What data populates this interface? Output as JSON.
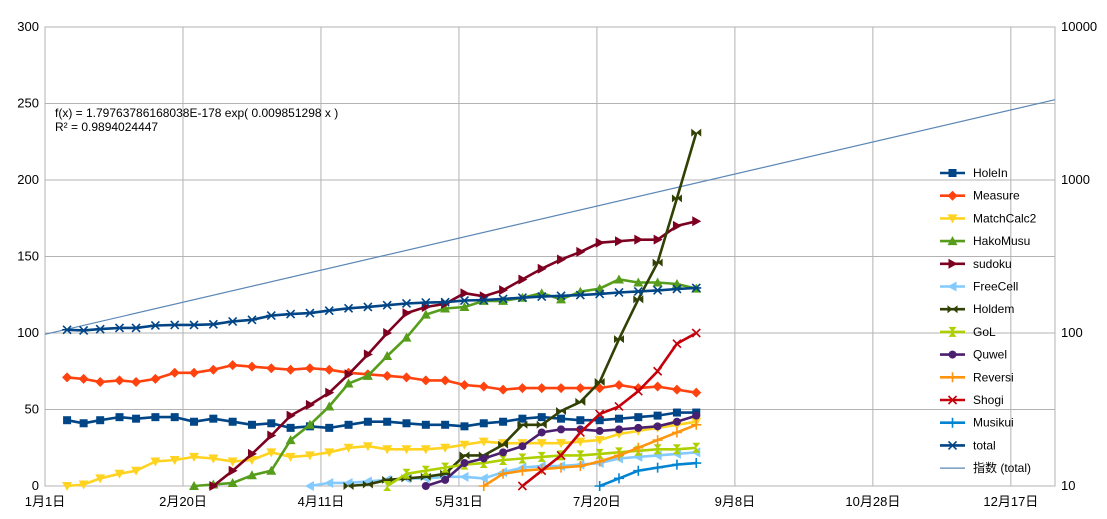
{
  "chart_data": {
    "type": "line",
    "x_axis": {
      "ticks": [
        "1月1日",
        "2月20日",
        "4月11日",
        "5月31日",
        "7月20日",
        "9月8日",
        "10月28日",
        "12月17日"
      ],
      "min_day": 1,
      "max_day": 367
    },
    "y_left": {
      "min": 0,
      "max": 300,
      "ticks": [
        "0",
        "50",
        "100",
        "150",
        "200",
        "250",
        "300"
      ]
    },
    "y_right": {
      "scale": "log",
      "min": 10,
      "max": 10000,
      "ticks": [
        "10",
        "100",
        "1000",
        "10000"
      ]
    },
    "grid": true,
    "legend_position": "right",
    "trendline": {
      "name": "指数 (total)",
      "equation": "f(x) = 1.79763786168038E-178 exp( 0.009851298 x )",
      "r2": "R² = 0.989402444​7",
      "start": [
        1,
        98
      ],
      "end": [
        367,
        3350
      ],
      "color": "#5b87b5"
    },
    "series": [
      {
        "name": "HoleIn",
        "color": "#004586",
        "marker": "square",
        "axis": "left",
        "points": [
          [
            9,
            43
          ],
          [
            15,
            41
          ],
          [
            21,
            43
          ],
          [
            28,
            45
          ],
          [
            34,
            44
          ],
          [
            41,
            45
          ],
          [
            48,
            45
          ],
          [
            55,
            42
          ],
          [
            62,
            44
          ],
          [
            69,
            42
          ],
          [
            76,
            40
          ],
          [
            83,
            41
          ],
          [
            90,
            38
          ],
          [
            97,
            39
          ],
          [
            104,
            38
          ],
          [
            111,
            40
          ],
          [
            118,
            42
          ],
          [
            125,
            42
          ],
          [
            132,
            41
          ],
          [
            139,
            40
          ],
          [
            146,
            40
          ],
          [
            153,
            39
          ],
          [
            160,
            41
          ],
          [
            167,
            42
          ],
          [
            174,
            44
          ],
          [
            181,
            45
          ],
          [
            188,
            44
          ],
          [
            195,
            43
          ],
          [
            202,
            43
          ],
          [
            209,
            44
          ],
          [
            216,
            45
          ],
          [
            223,
            46
          ],
          [
            230,
            48
          ],
          [
            237,
            48
          ]
        ]
      },
      {
        "name": "Measure",
        "color": "#ff420e",
        "marker": "diamond",
        "axis": "left",
        "points": [
          [
            9,
            71
          ],
          [
            15,
            70
          ],
          [
            21,
            68
          ],
          [
            28,
            69
          ],
          [
            34,
            68
          ],
          [
            41,
            70
          ],
          [
            48,
            74
          ],
          [
            55,
            74
          ],
          [
            62,
            76
          ],
          [
            69,
            79
          ],
          [
            76,
            78
          ],
          [
            83,
            77
          ],
          [
            90,
            76
          ],
          [
            97,
            77
          ],
          [
            104,
            76
          ],
          [
            111,
            74
          ],
          [
            118,
            73
          ],
          [
            125,
            72
          ],
          [
            132,
            71
          ],
          [
            139,
            69
          ],
          [
            146,
            69
          ],
          [
            153,
            66
          ],
          [
            160,
            65
          ],
          [
            167,
            63
          ],
          [
            174,
            64
          ],
          [
            181,
            64
          ],
          [
            188,
            64
          ],
          [
            195,
            64
          ],
          [
            202,
            64
          ],
          [
            209,
            66
          ],
          [
            216,
            64
          ],
          [
            223,
            65
          ],
          [
            230,
            63
          ],
          [
            237,
            61
          ]
        ]
      },
      {
        "name": "MatchCalc2",
        "color": "#ffd320",
        "marker": "triangle-down",
        "axis": "left",
        "points": [
          [
            9,
            0
          ],
          [
            15,
            1
          ],
          [
            21,
            5
          ],
          [
            28,
            8
          ],
          [
            34,
            10
          ],
          [
            41,
            16
          ],
          [
            48,
            17
          ],
          [
            55,
            19
          ],
          [
            62,
            18
          ],
          [
            69,
            16
          ],
          [
            76,
            17
          ],
          [
            83,
            22
          ],
          [
            90,
            19
          ],
          [
            97,
            20
          ],
          [
            104,
            22
          ],
          [
            111,
            25
          ],
          [
            118,
            26
          ],
          [
            125,
            24
          ],
          [
            132,
            24
          ],
          [
            139,
            24
          ],
          [
            146,
            25
          ],
          [
            153,
            27
          ],
          [
            160,
            29
          ],
          [
            167,
            28
          ],
          [
            174,
            28
          ],
          [
            181,
            28
          ],
          [
            188,
            28
          ],
          [
            195,
            29
          ],
          [
            202,
            30
          ],
          [
            209,
            34
          ],
          [
            216,
            36
          ],
          [
            223,
            38
          ],
          [
            230,
            40
          ],
          [
            237,
            42
          ]
        ]
      },
      {
        "name": "HakoMusu",
        "color": "#579d1c",
        "marker": "triangle-up",
        "axis": "left",
        "points": [
          [
            55,
            0
          ],
          [
            62,
            1
          ],
          [
            69,
            2
          ],
          [
            76,
            7
          ],
          [
            83,
            10
          ],
          [
            90,
            30
          ],
          [
            97,
            40
          ],
          [
            104,
            52
          ],
          [
            111,
            67
          ],
          [
            118,
            72
          ],
          [
            125,
            85
          ],
          [
            132,
            97
          ],
          [
            139,
            112
          ],
          [
            146,
            116
          ],
          [
            153,
            117
          ],
          [
            160,
            121
          ],
          [
            167,
            121
          ],
          [
            174,
            123
          ],
          [
            181,
            126
          ],
          [
            188,
            122
          ],
          [
            195,
            127
          ],
          [
            202,
            129
          ],
          [
            209,
            135
          ],
          [
            216,
            133
          ],
          [
            223,
            133
          ],
          [
            230,
            132
          ],
          [
            237,
            129
          ]
        ]
      },
      {
        "name": "sudoku",
        "color": "#7e0021",
        "marker": "triangle-right",
        "axis": "left",
        "points": [
          [
            62,
            0
          ],
          [
            69,
            10
          ],
          [
            76,
            21
          ],
          [
            83,
            33
          ],
          [
            90,
            46
          ],
          [
            97,
            53
          ],
          [
            104,
            61
          ],
          [
            111,
            73
          ],
          [
            118,
            86
          ],
          [
            125,
            100
          ],
          [
            132,
            113
          ],
          [
            139,
            117
          ],
          [
            146,
            119
          ],
          [
            153,
            126
          ],
          [
            160,
            124
          ],
          [
            167,
            128
          ],
          [
            174,
            135
          ],
          [
            181,
            142
          ],
          [
            188,
            148
          ],
          [
            195,
            153
          ],
          [
            202,
            159
          ],
          [
            209,
            160
          ],
          [
            216,
            161
          ],
          [
            223,
            161
          ],
          [
            230,
            170
          ],
          [
            237,
            173
          ]
        ]
      },
      {
        "name": "FreeCell",
        "color": "#83caff",
        "marker": "triangle-left",
        "axis": "left",
        "points": [
          [
            97,
            0
          ],
          [
            104,
            2
          ],
          [
            111,
            2
          ],
          [
            118,
            3
          ],
          [
            125,
            4
          ],
          [
            132,
            5
          ],
          [
            139,
            5
          ],
          [
            146,
            6
          ],
          [
            153,
            6
          ],
          [
            160,
            5
          ],
          [
            167,
            9
          ],
          [
            174,
            12
          ],
          [
            181,
            13
          ],
          [
            188,
            13
          ],
          [
            195,
            14
          ],
          [
            202,
            15
          ],
          [
            209,
            18
          ],
          [
            216,
            19
          ],
          [
            223,
            20
          ],
          [
            230,
            21
          ],
          [
            237,
            22
          ]
        ]
      },
      {
        "name": "Holdem",
        "color": "#314004",
        "marker": "bowtie",
        "axis": "left",
        "points": [
          [
            111,
            0
          ],
          [
            118,
            1
          ],
          [
            125,
            4
          ],
          [
            132,
            5
          ],
          [
            139,
            6
          ],
          [
            146,
            8
          ],
          [
            153,
            20
          ],
          [
            160,
            20
          ],
          [
            167,
            27
          ],
          [
            174,
            40
          ],
          [
            181,
            40
          ],
          [
            188,
            49
          ],
          [
            195,
            55
          ],
          [
            202,
            68
          ],
          [
            209,
            96
          ],
          [
            216,
            122
          ],
          [
            223,
            146
          ],
          [
            230,
            188
          ],
          [
            237,
            231
          ]
        ]
      },
      {
        "name": "GoL",
        "color": "#aecf00",
        "marker": "hourglass",
        "axis": "left",
        "points": [
          [
            125,
            0
          ],
          [
            132,
            8
          ],
          [
            139,
            10
          ],
          [
            146,
            12
          ],
          [
            153,
            14
          ],
          [
            160,
            15
          ],
          [
            167,
            17
          ],
          [
            174,
            18
          ],
          [
            181,
            19
          ],
          [
            188,
            20
          ],
          [
            195,
            20
          ],
          [
            202,
            21
          ],
          [
            209,
            22
          ],
          [
            216,
            23
          ],
          [
            223,
            24
          ],
          [
            230,
            24
          ],
          [
            237,
            25
          ]
        ]
      },
      {
        "name": "Quwel",
        "color": "#4b1f6f",
        "marker": "circle",
        "axis": "left",
        "points": [
          [
            139,
            0
          ],
          [
            146,
            4
          ],
          [
            153,
            15
          ],
          [
            160,
            18
          ],
          [
            167,
            22
          ],
          [
            174,
            26
          ],
          [
            181,
            35
          ],
          [
            188,
            37
          ],
          [
            195,
            37
          ],
          [
            202,
            36
          ],
          [
            209,
            37
          ],
          [
            216,
            38
          ],
          [
            223,
            39
          ],
          [
            230,
            42
          ],
          [
            237,
            46
          ]
        ]
      },
      {
        "name": "Reversi",
        "color": "#ff950e",
        "marker": "plus",
        "axis": "left",
        "points": [
          [
            160,
            0
          ],
          [
            167,
            8
          ],
          [
            174,
            10
          ],
          [
            181,
            11
          ],
          [
            188,
            12
          ],
          [
            195,
            13
          ],
          [
            202,
            16
          ],
          [
            209,
            20
          ],
          [
            216,
            25
          ],
          [
            223,
            30
          ],
          [
            230,
            35
          ],
          [
            237,
            40
          ]
        ]
      },
      {
        "name": "Shogi",
        "color": "#c5000b",
        "marker": "x",
        "axis": "left",
        "points": [
          [
            174,
            0
          ],
          [
            181,
            10
          ],
          [
            188,
            20
          ],
          [
            195,
            35
          ],
          [
            202,
            47
          ],
          [
            209,
            52
          ],
          [
            216,
            62
          ],
          [
            223,
            75
          ],
          [
            230,
            93
          ],
          [
            237,
            100
          ]
        ]
      },
      {
        "name": "Musikui",
        "color": "#0084d1",
        "marker": "plus",
        "axis": "left",
        "points": [
          [
            202,
            0
          ],
          [
            209,
            5
          ],
          [
            216,
            10
          ],
          [
            223,
            12
          ],
          [
            230,
            14
          ],
          [
            237,
            15
          ]
        ]
      },
      {
        "name": "total",
        "color": "#004586",
        "marker": "asterisk",
        "axis": "right",
        "points": [
          [
            9,
            105
          ],
          [
            15,
            104
          ],
          [
            21,
            106
          ],
          [
            28,
            108
          ],
          [
            34,
            108
          ],
          [
            41,
            112
          ],
          [
            48,
            113
          ],
          [
            55,
            113
          ],
          [
            62,
            114
          ],
          [
            69,
            119
          ],
          [
            76,
            122
          ],
          [
            83,
            130
          ],
          [
            90,
            133
          ],
          [
            97,
            135
          ],
          [
            104,
            140
          ],
          [
            111,
            145
          ],
          [
            118,
            148
          ],
          [
            125,
            152
          ],
          [
            132,
            156
          ],
          [
            139,
            158
          ],
          [
            146,
            159
          ],
          [
            153,
            163
          ],
          [
            160,
            164
          ],
          [
            167,
            167
          ],
          [
            174,
            170
          ],
          [
            181,
            173
          ],
          [
            188,
            175
          ],
          [
            195,
            177
          ],
          [
            202,
            180
          ],
          [
            209,
            184
          ],
          [
            216,
            187
          ],
          [
            223,
            190
          ],
          [
            230,
            194
          ],
          [
            237,
            197
          ]
        ]
      }
    ]
  }
}
